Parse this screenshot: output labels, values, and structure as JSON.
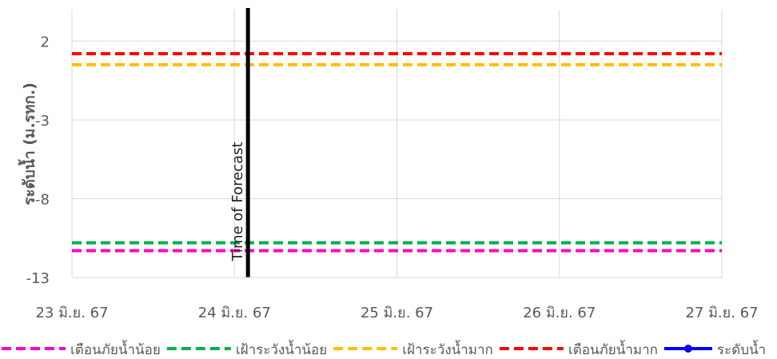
{
  "chart_data": {
    "type": "line",
    "title": "",
    "xlabel": "",
    "ylabel": "ระดับน้ำ (ม.รทก.)",
    "x_ticks": [
      "23 มิ.ย. 67",
      "24 มิ.ย. 67",
      "25 มิ.ย. 67",
      "26 มิ.ย. 67",
      "27 มิ.ย. 67"
    ],
    "xlim": [
      "2024-06-23",
      "2024-06-27"
    ],
    "y_ticks": [
      2,
      -3,
      -8,
      -13
    ],
    "ylim": [
      -13,
      4
    ],
    "grid": {
      "vertical": true,
      "horizontal": true
    },
    "forecast_marker": {
      "x": "2024-06-24 02:00",
      "label": "Time of Forecast"
    },
    "series": [
      {
        "name": "เตือนภัยน้ำน้อย",
        "color": "#FF00CC",
        "style": "dashed",
        "values": [
          -11.3,
          -11.3,
          -11.3,
          -11.3,
          -11.3
        ]
      },
      {
        "name": "เฝ้าระวังน้ำน้อย",
        "color": "#00B050",
        "style": "dashed",
        "values": [
          -10.8,
          -10.8,
          -10.8,
          -10.8,
          -10.8
        ]
      },
      {
        "name": "เฝ้าระวังน้ำมาก",
        "color": "#FFC000",
        "style": "dashed",
        "values": [
          0.5,
          0.5,
          0.5,
          0.5,
          0.5
        ]
      },
      {
        "name": "เตือนภัยน้ำมาก",
        "color": "#FF0000",
        "style": "dashed",
        "values": [
          1.2,
          1.2,
          1.2,
          1.2,
          1.2
        ]
      },
      {
        "name": "ระดับน้ำ",
        "color": "#0000FF",
        "style": "line-marker",
        "values": []
      }
    ],
    "legend": {
      "position": "bottom"
    }
  }
}
